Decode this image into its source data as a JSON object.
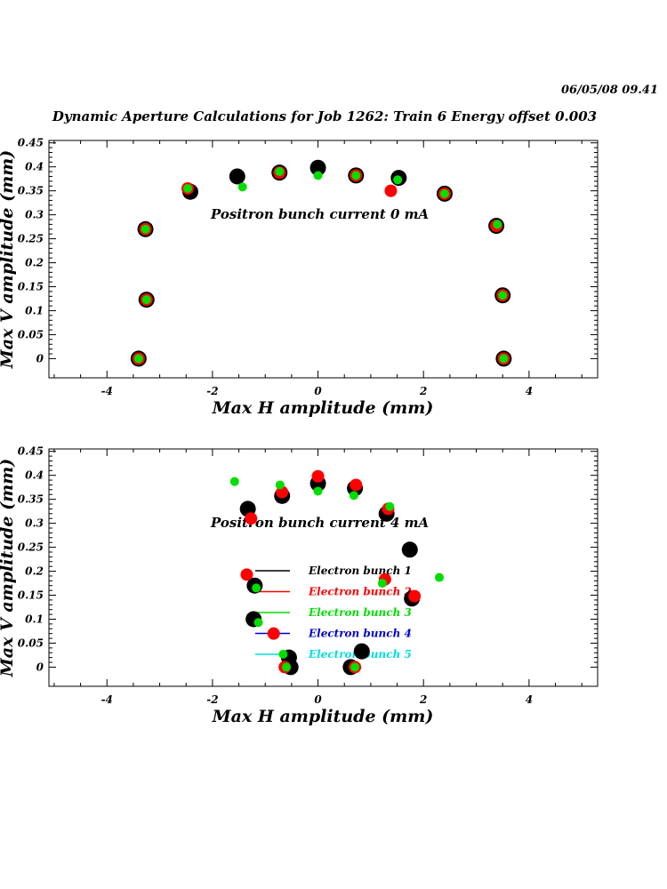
{
  "header": {
    "date": "06/05/08   09.41",
    "title": "Dynamic Aperture Calculations for Job 1262:  Train 6   Energy offset  0.003"
  },
  "colors": {
    "bunch1": "#000000",
    "bunch2": "#ff0000",
    "bunch3": "#00dd00",
    "bunch4": "#0000cc",
    "bunch5": "#00dddd"
  },
  "chart_data": [
    {
      "type": "scatter",
      "annotation": "Positron bunch current  0 mA",
      "xlabel": "Max H amplitude (mm)",
      "ylabel": "Max V amplitude (mm)",
      "xlim": [
        -5.1,
        5.3
      ],
      "ylim": [
        -0.04,
        0.455
      ],
      "xticks": [
        -4,
        -2,
        0,
        2,
        4
      ],
      "yticks": [
        0,
        0.05,
        0.1,
        0.15,
        0.2,
        0.25,
        0.3,
        0.35,
        0.4,
        0.45
      ],
      "xtick_labels": [
        "-4",
        "-2",
        "0",
        "2",
        "4"
      ],
      "ytick_labels": [
        "0",
        "0.05",
        "0.1",
        "0.15",
        "0.2",
        "0.25",
        "0.3",
        "0.35",
        "0.4",
        "0.45"
      ],
      "series": [
        {
          "color_key": "bunch1",
          "size": "large",
          "points": [
            [
              -3.4,
              0.0
            ],
            [
              -3.25,
              0.123
            ],
            [
              -3.27,
              0.27
            ],
            [
              -2.42,
              0.348
            ],
            [
              -1.53,
              0.38
            ],
            [
              -0.73,
              0.388
            ],
            [
              0.0,
              0.398
            ],
            [
              0.72,
              0.382
            ],
            [
              1.53,
              0.377
            ],
            [
              2.4,
              0.344
            ],
            [
              3.38,
              0.277
            ],
            [
              3.5,
              0.132
            ],
            [
              3.52,
              0.0
            ]
          ]
        },
        {
          "color_key": "bunch2",
          "size": "medium",
          "points": [
            [
              -3.4,
              0.0
            ],
            [
              -3.25,
              0.123
            ],
            [
              -3.27,
              0.27
            ],
            [
              -2.47,
              0.355
            ],
            [
              -0.73,
              0.388
            ],
            [
              0.72,
              0.382
            ],
            [
              1.38,
              0.35
            ],
            [
              2.4,
              0.344
            ],
            [
              3.38,
              0.277
            ],
            [
              3.5,
              0.132
            ],
            [
              3.52,
              0.0
            ]
          ]
        },
        {
          "color_key": "bunch3",
          "size": "small",
          "points": [
            [
              -3.4,
              0.0
            ],
            [
              -3.25,
              0.123
            ],
            [
              -3.27,
              0.27
            ],
            [
              -2.47,
              0.355
            ],
            [
              -1.43,
              0.358
            ],
            [
              -0.73,
              0.39
            ],
            [
              0.0,
              0.382
            ],
            [
              0.72,
              0.382
            ],
            [
              1.51,
              0.373
            ],
            [
              2.4,
              0.344
            ],
            [
              3.4,
              0.28
            ],
            [
              3.5,
              0.132
            ],
            [
              3.52,
              0.0
            ]
          ]
        }
      ]
    },
    {
      "type": "scatter",
      "annotation": "Positron bunch current  4 mA",
      "xlabel": "Max H amplitude (mm)",
      "ylabel": "Max V amplitude (mm)",
      "xlim": [
        -5.1,
        5.3
      ],
      "ylim": [
        -0.04,
        0.455
      ],
      "xticks": [
        -4,
        -2,
        0,
        2,
        4
      ],
      "yticks": [
        0,
        0.05,
        0.1,
        0.15,
        0.2,
        0.25,
        0.3,
        0.35,
        0.4,
        0.45
      ],
      "xtick_labels": [
        "-4",
        "-2",
        "0",
        "2",
        "4"
      ],
      "ytick_labels": [
        "0",
        "0.05",
        "0.1",
        "0.15",
        "0.2",
        "0.25",
        "0.3",
        "0.35",
        "0.4",
        "0.45"
      ],
      "legend": {
        "placement": "center",
        "entries": [
          {
            "label": "Electron bunch 1",
            "color_key": "bunch1"
          },
          {
            "label": "Electron bunch 2",
            "color_key": "bunch2"
          },
          {
            "label": "Electron bunch 3",
            "color_key": "bunch3"
          },
          {
            "label": "Electron bunch 4",
            "color_key": "bunch4"
          },
          {
            "label": "Electron bunch 5",
            "color_key": "bunch5"
          }
        ]
      },
      "series": [
        {
          "color_key": "bunch1",
          "size": "large",
          "points": [
            [
              -1.33,
              0.33
            ],
            [
              -0.68,
              0.357
            ],
            [
              0.0,
              0.383
            ],
            [
              0.7,
              0.373
            ],
            [
              1.3,
              0.32
            ],
            [
              1.74,
              0.245
            ],
            [
              1.78,
              0.143
            ],
            [
              -1.2,
              0.17
            ],
            [
              -1.22,
              0.1
            ],
            [
              -0.55,
              0.02
            ],
            [
              -0.52,
              0.0
            ],
            [
              0.62,
              0.0
            ],
            [
              0.83,
              0.033
            ]
          ]
        },
        {
          "color_key": "bunch2",
          "size": "medium",
          "points": [
            [
              -1.27,
              0.31
            ],
            [
              -0.68,
              0.365
            ],
            [
              0.0,
              0.398
            ],
            [
              0.72,
              0.38
            ],
            [
              1.33,
              0.33
            ],
            [
              1.83,
              0.148
            ],
            [
              1.27,
              0.183
            ],
            [
              -1.35,
              0.193
            ],
            [
              -0.84,
              0.07
            ],
            [
              -0.63,
              0.0
            ],
            [
              0.7,
              0.0
            ]
          ]
        },
        {
          "color_key": "bunch3",
          "size": "small",
          "points": [
            [
              -1.58,
              0.387
            ],
            [
              -0.72,
              0.38
            ],
            [
              0.0,
              0.367
            ],
            [
              0.68,
              0.358
            ],
            [
              1.36,
              0.335
            ],
            [
              2.3,
              0.187
            ],
            [
              1.22,
              0.175
            ],
            [
              -1.17,
              0.165
            ],
            [
              -1.13,
              0.093
            ],
            [
              -0.66,
              0.027
            ],
            [
              -0.6,
              0.0
            ],
            [
              0.7,
              0.0
            ]
          ]
        }
      ]
    }
  ]
}
